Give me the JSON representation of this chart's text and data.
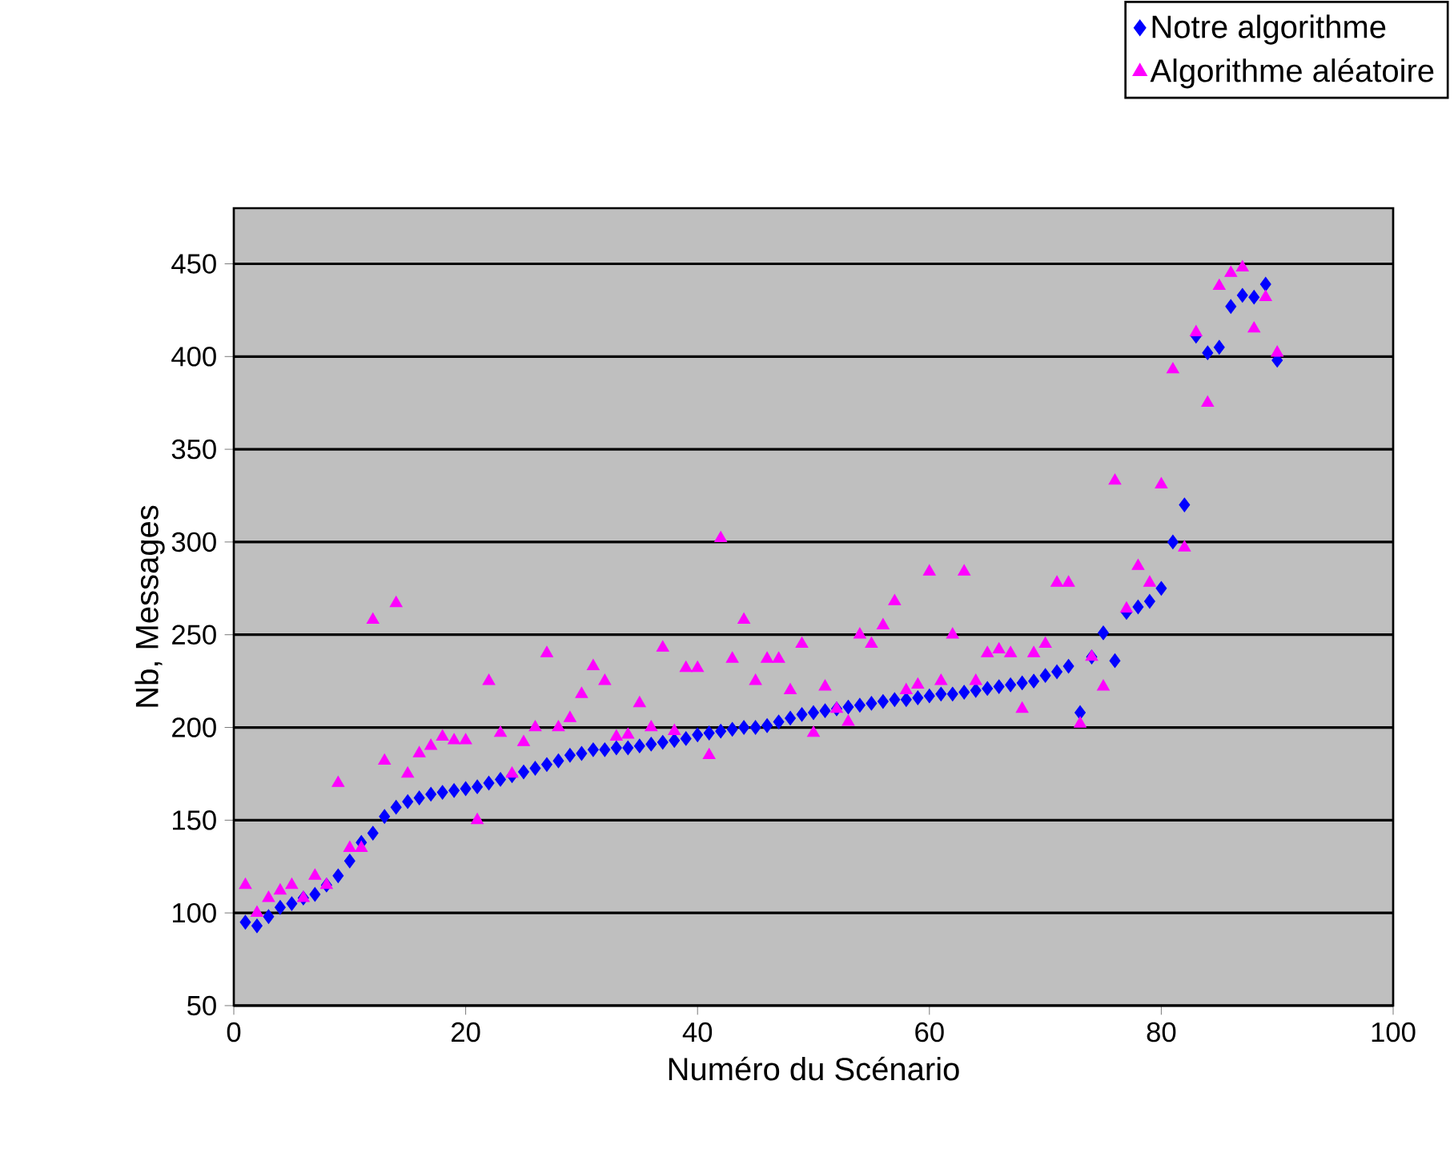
{
  "chart_data": {
    "type": "scatter",
    "xlabel": "Numéro du Scénario",
    "ylabel": "Nb, Messages",
    "xlim": [
      0,
      100
    ],
    "xticks": [
      0,
      20,
      40,
      60,
      80,
      100
    ],
    "ylim": [
      50,
      480
    ],
    "yticks": [
      50,
      100,
      150,
      200,
      250,
      300,
      350,
      400,
      450
    ],
    "grid": "y",
    "legend": "top right",
    "x": [
      1,
      2,
      3,
      4,
      5,
      6,
      7,
      8,
      9,
      10,
      11,
      12,
      13,
      14,
      15,
      16,
      17,
      18,
      19,
      20,
      21,
      22,
      23,
      24,
      25,
      26,
      27,
      28,
      29,
      30,
      31,
      32,
      33,
      34,
      35,
      36,
      37,
      38,
      39,
      40,
      41,
      42,
      43,
      44,
      45,
      46,
      47,
      48,
      49,
      50,
      51,
      52,
      53,
      54,
      55,
      56,
      57,
      58,
      59,
      60,
      61,
      62,
      63,
      64,
      65,
      66,
      67,
      68,
      69,
      70,
      71,
      72,
      73,
      74,
      75,
      76,
      77,
      78,
      79,
      80,
      81,
      82,
      83,
      84,
      85,
      86,
      87,
      88,
      89,
      90
    ],
    "series": [
      {
        "name": "Notre algorithme",
        "color": "#0000ff",
        "marker": "diamond",
        "values": [
          95,
          93,
          98,
          103,
          105,
          108,
          110,
          115,
          120,
          128,
          138,
          143,
          152,
          157,
          160,
          162,
          164,
          165,
          166,
          167,
          168,
          170,
          172,
          174,
          176,
          178,
          180,
          182,
          185,
          186,
          188,
          188,
          189,
          189,
          190,
          191,
          192,
          193,
          194,
          196,
          197,
          198,
          199,
          200,
          200,
          201,
          203,
          205,
          207,
          208,
          209,
          210,
          211,
          212,
          213,
          214,
          215,
          215,
          216,
          217,
          218,
          218,
          219,
          220,
          221,
          222,
          223,
          224,
          225,
          228,
          230,
          233,
          208,
          238,
          251,
          236,
          262,
          265,
          268,
          275,
          300,
          320,
          411,
          402,
          405,
          427,
          433,
          432,
          439,
          398
        ]
      },
      {
        "name": "Algorithme aléatoire",
        "color": "#ff00ff",
        "marker": "triangle",
        "values": [
          115,
          100,
          108,
          112,
          115,
          108,
          120,
          115,
          170,
          135,
          135,
          258,
          182,
          267,
          175,
          186,
          190,
          195,
          193,
          193,
          150,
          225,
          197,
          175,
          192,
          200,
          240,
          200,
          205,
          218,
          233,
          225,
          195,
          196,
          213,
          200,
          243,
          198,
          232,
          232,
          185,
          302,
          237,
          258,
          225,
          237,
          237,
          220,
          245,
          197,
          222,
          210,
          203,
          250,
          245,
          255,
          268,
          220,
          223,
          284,
          225,
          250,
          284,
          225,
          240,
          242,
          240,
          210,
          240,
          245,
          278,
          278,
          202,
          238,
          222,
          333,
          264,
          287,
          278,
          331,
          393,
          297,
          413,
          375,
          438,
          445,
          448,
          415,
          432,
          402
        ]
      }
    ]
  }
}
